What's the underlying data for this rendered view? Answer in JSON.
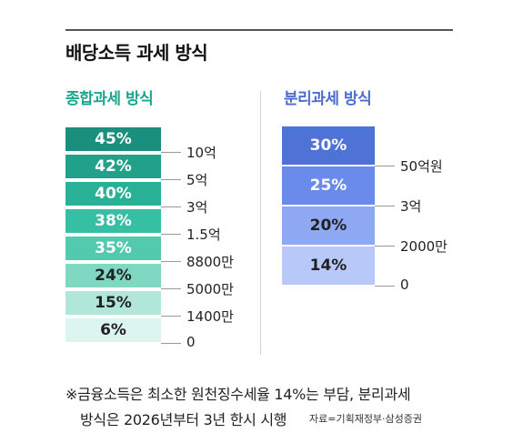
{
  "title": "배당소득 과세 방식",
  "chart_data": [
    {
      "type": "bar",
      "title": "종합과세 방식",
      "rates": [
        "45%",
        "42%",
        "40%",
        "38%",
        "35%",
        "24%",
        "15%",
        "6%"
      ],
      "values": [
        45,
        42,
        40,
        38,
        35,
        24,
        15,
        6
      ],
      "thresholds": [
        "10억",
        "5억",
        "3억",
        "1.5억",
        "8800만",
        "5000만",
        "1400만",
        "0"
      ],
      "colors": [
        "#1b8f7d",
        "#22a18a",
        "#28b196",
        "#36bfa2",
        "#53c9ad",
        "#80d8c2",
        "#b0e7d9",
        "#dcf5ee"
      ],
      "label_colors": [
        "#ffffff",
        "#ffffff",
        "#ffffff",
        "#ffffff",
        "#ffffff",
        "#222222",
        "#222222",
        "#222222"
      ]
    },
    {
      "type": "bar",
      "title": "분리과세 방식",
      "rates": [
        "30%",
        "25%",
        "20%",
        "14%"
      ],
      "values": [
        30,
        25,
        20,
        14
      ],
      "thresholds": [
        "50억원",
        "3억",
        "2000만",
        "0"
      ],
      "colors": [
        "#4f72d6",
        "#6b8bec",
        "#8fa8f4",
        "#b7c8f9"
      ],
      "label_colors": [
        "#ffffff",
        "#ffffff",
        "#222222",
        "#222222"
      ]
    }
  ],
  "note": {
    "line1": "※금융소득은 최소한 원천징수세율 14%는 부담, 분리과세",
    "line2": "방식은 2026년부터 3년 한시 시행"
  },
  "source": "자료=기획재정부·삼성증권"
}
